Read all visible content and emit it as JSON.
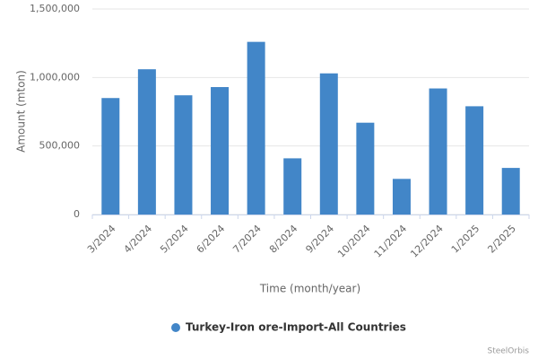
{
  "chart_data": {
    "type": "bar",
    "x_label": "Time (month/year)",
    "y_label": "Amount (mton)",
    "credits": "SteelOrbis",
    "categories": [
      "3/2024",
      "4/2024",
      "5/2024",
      "6/2024",
      "7/2024",
      "8/2024",
      "9/2024",
      "10/2024",
      "11/2024",
      "12/2024",
      "1/2025",
      "2/2025"
    ],
    "series": [
      {
        "name": "Turkey-Iron ore-Import-All Countries",
        "color": "#4286c8",
        "values": [
          850000,
          1060000,
          870000,
          930000,
          1260000,
          410000,
          1030000,
          670000,
          260000,
          920000,
          790000,
          340000
        ]
      }
    ],
    "ylim": [
      0,
      1500000
    ],
    "yticks": [
      0,
      {
        "value": 500000,
        "label": "500,000"
      },
      {
        "value": 1000000,
        "label": "1,000,000"
      },
      {
        "value": 1500000,
        "label": "1,500,000"
      }
    ],
    "grid": true
  }
}
